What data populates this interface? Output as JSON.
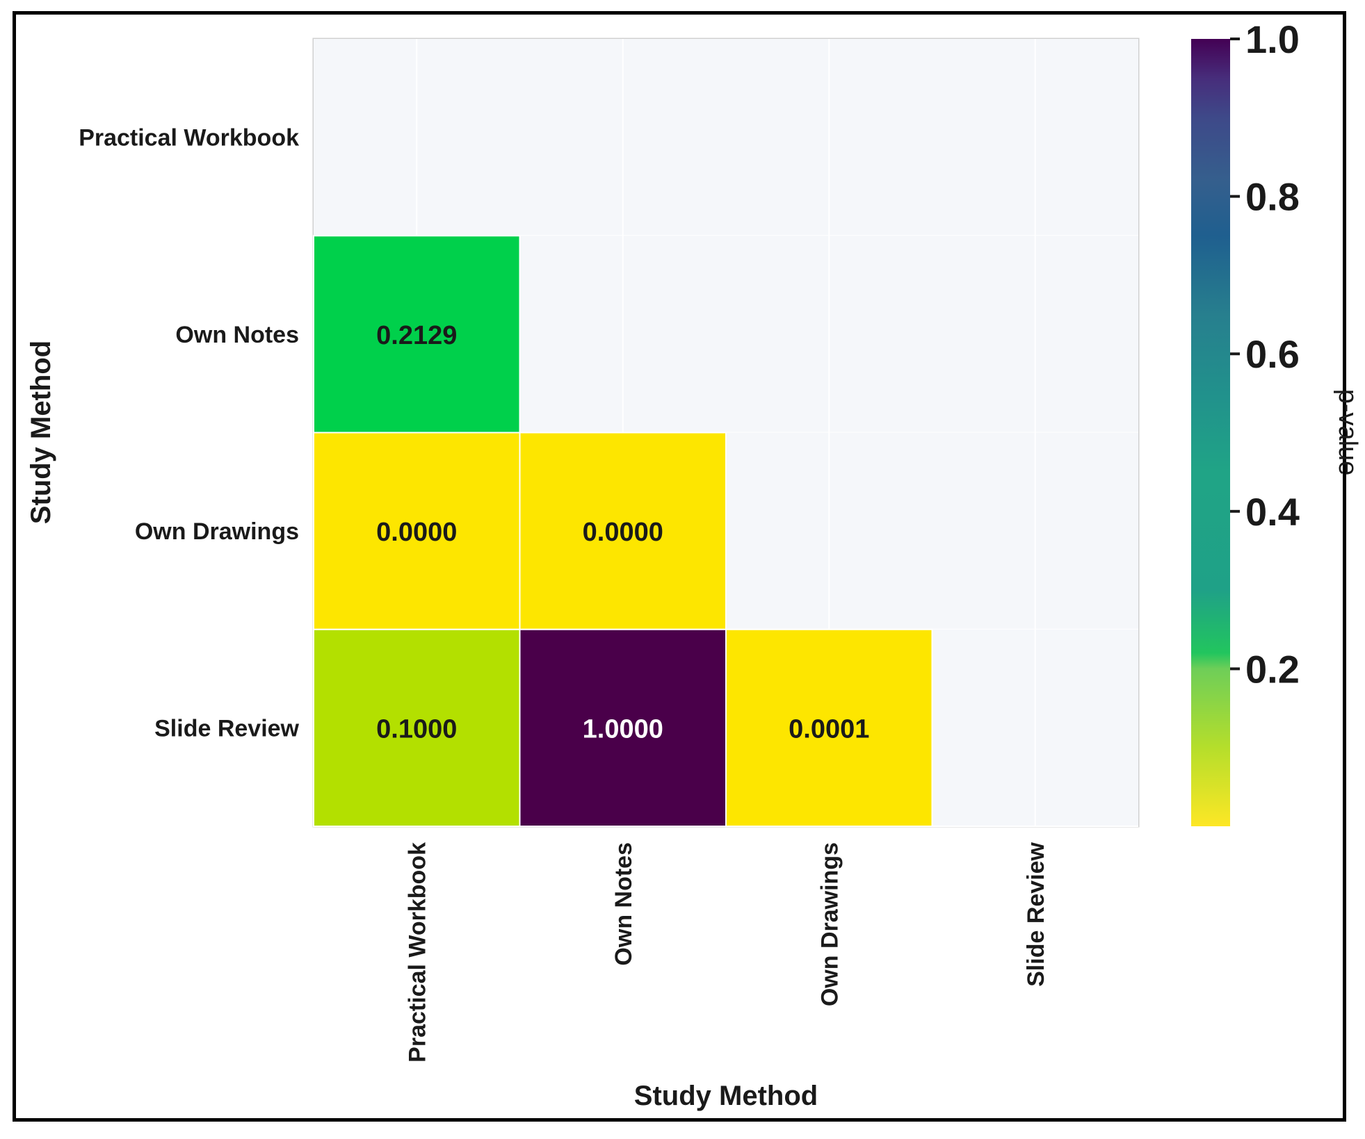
{
  "chart_data": {
    "type": "heatmap",
    "title": "",
    "xlabel": "Study Method",
    "ylabel": "Study Method",
    "rows": [
      "Practical Workbook",
      "Own Notes",
      "Own Drawings",
      "Slide Review"
    ],
    "columns": [
      "Practical Workbook",
      "Own Notes",
      "Own Drawings",
      "Slide Review"
    ],
    "mask": "upper-triangle-including-diagonal",
    "cells": [
      {
        "row": 1,
        "col": 0,
        "value": 0.2129,
        "label": "0.2129"
      },
      {
        "row": 2,
        "col": 0,
        "value": 0.0,
        "label": "0.0000"
      },
      {
        "row": 2,
        "col": 1,
        "value": 0.0,
        "label": "0.0000"
      },
      {
        "row": 3,
        "col": 0,
        "value": 0.1,
        "label": "0.1000"
      },
      {
        "row": 3,
        "col": 1,
        "value": 1.0,
        "label": "1.0000"
      },
      {
        "row": 3,
        "col": 2,
        "value": 0.0001,
        "label": "0.0001"
      }
    ],
    "colorbar": {
      "label": "p-value",
      "range": [
        0.0,
        1.0
      ],
      "ticks": [
        "0.2",
        "0.4",
        "0.6",
        "0.8",
        "1.0"
      ],
      "tick_values": [
        0.2,
        0.4,
        0.6,
        0.8,
        1.0
      ],
      "colormap": "viridis_r"
    },
    "colors": {
      "masked_cell": "#f5f7fa",
      "grid_line": "#ffffff",
      "dark_text": "#1a1a1a",
      "light_text": "#ffffff"
    }
  }
}
